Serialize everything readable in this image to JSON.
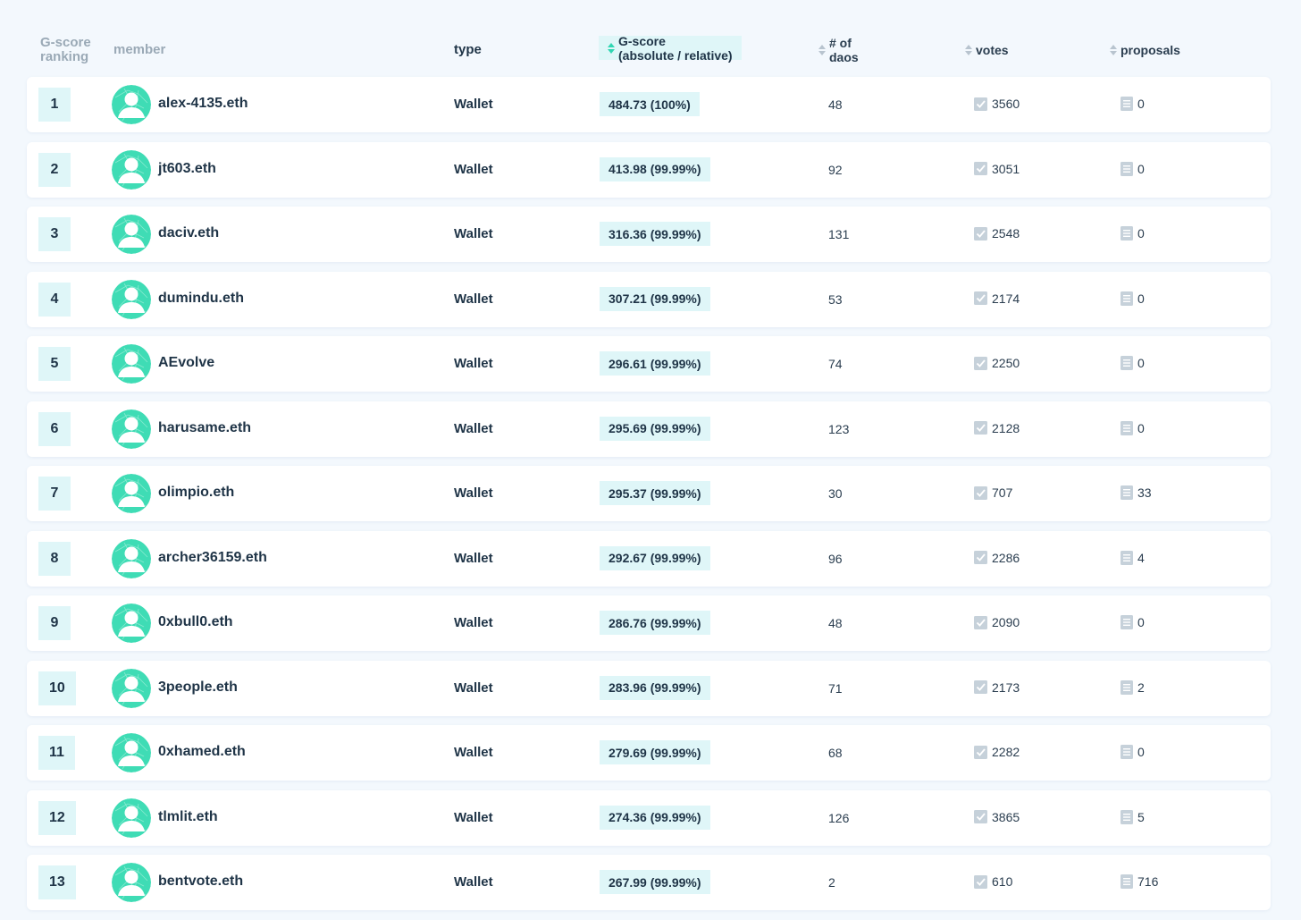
{
  "header": {
    "rank": "G-score ranking",
    "member": "member",
    "type": "type",
    "gscore_line1": "G-score",
    "gscore_line2": "(absolute / relative)",
    "daos_line1": "# of",
    "daos_line2": "daos",
    "votes": "votes",
    "proposals": "proposals"
  },
  "colors": {
    "accent": "#2fd6b2",
    "badge_bg": "#dff6f8",
    "text": "#1f3447",
    "muted": "#9aa9b6"
  },
  "rows": [
    {
      "rank": "1",
      "member": "alex-4135.eth",
      "type": "Wallet",
      "gscore": "484.73 (100%)",
      "daos": "48",
      "votes": "3560",
      "proposals": "0"
    },
    {
      "rank": "2",
      "member": "jt603.eth",
      "type": "Wallet",
      "gscore": "413.98 (99.99%)",
      "daos": "92",
      "votes": "3051",
      "proposals": "0"
    },
    {
      "rank": "3",
      "member": "daciv.eth",
      "type": "Wallet",
      "gscore": "316.36 (99.99%)",
      "daos": "131",
      "votes": "2548",
      "proposals": "0"
    },
    {
      "rank": "4",
      "member": "dumindu.eth",
      "type": "Wallet",
      "gscore": "307.21 (99.99%)",
      "daos": "53",
      "votes": "2174",
      "proposals": "0"
    },
    {
      "rank": "5",
      "member": "AEvolve",
      "type": "Wallet",
      "gscore": "296.61 (99.99%)",
      "daos": "74",
      "votes": "2250",
      "proposals": "0"
    },
    {
      "rank": "6",
      "member": "harusame.eth",
      "type": "Wallet",
      "gscore": "295.69 (99.99%)",
      "daos": "123",
      "votes": "2128",
      "proposals": "0"
    },
    {
      "rank": "7",
      "member": "olimpio.eth",
      "type": "Wallet",
      "gscore": "295.37 (99.99%)",
      "daos": "30",
      "votes": "707",
      "proposals": "33"
    },
    {
      "rank": "8",
      "member": "archer36159.eth",
      "type": "Wallet",
      "gscore": "292.67 (99.99%)",
      "daos": "96",
      "votes": "2286",
      "proposals": "4"
    },
    {
      "rank": "9",
      "member": "0xbull0.eth",
      "type": "Wallet",
      "gscore": "286.76 (99.99%)",
      "daos": "48",
      "votes": "2090",
      "proposals": "0"
    },
    {
      "rank": "10",
      "member": "3people.eth",
      "type": "Wallet",
      "gscore": "283.96 (99.99%)",
      "daos": "71",
      "votes": "2173",
      "proposals": "2"
    },
    {
      "rank": "11",
      "member": "0xhamed.eth",
      "type": "Wallet",
      "gscore": "279.69 (99.99%)",
      "daos": "68",
      "votes": "2282",
      "proposals": "0"
    },
    {
      "rank": "12",
      "member": "tlmlit.eth",
      "type": "Wallet",
      "gscore": "274.36 (99.99%)",
      "daos": "126",
      "votes": "3865",
      "proposals": "5"
    },
    {
      "rank": "13",
      "member": "bentvote.eth",
      "type": "Wallet",
      "gscore": "267.99 (99.99%)",
      "daos": "2",
      "votes": "610",
      "proposals": "716"
    }
  ]
}
